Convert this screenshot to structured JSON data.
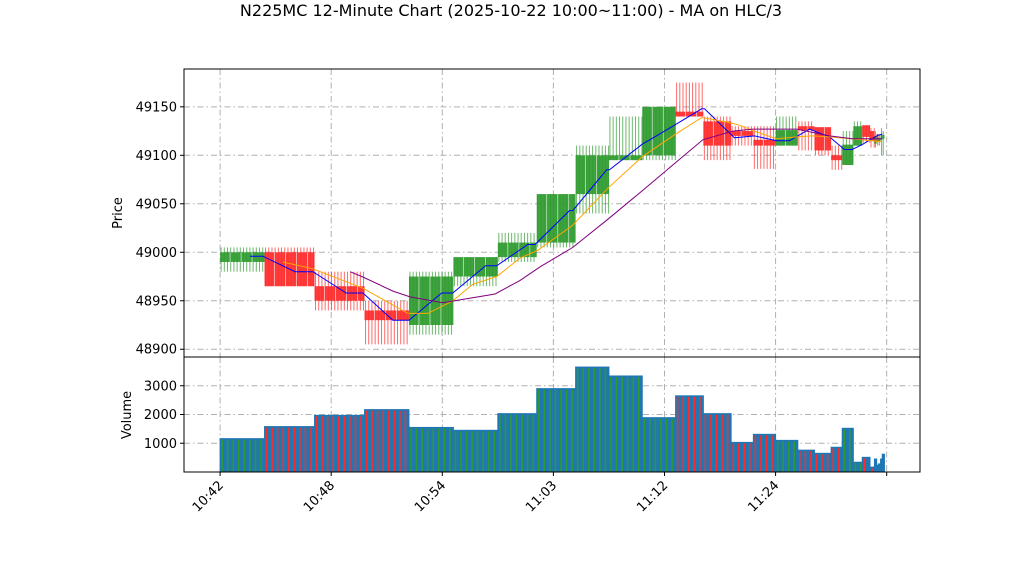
{
  "chart_data": {
    "type": "bar",
    "title": "N225MC 12-Minute Chart (2025-10-22 10:00~11:00) - MA on HLC/3",
    "xlabel": "",
    "x_ticks": [
      {
        "x": 0,
        "label": "10:42"
      },
      {
        "x": 20,
        "label": "10:48"
      },
      {
        "x": 40,
        "label": "10:54"
      },
      {
        "x": 60,
        "label": "11:03"
      },
      {
        "x": 80,
        "label": "11:12"
      },
      {
        "x": 100,
        "label": "11:24"
      },
      {
        "x": 120,
        "label": ""
      }
    ],
    "xlim": [
      -6.5,
      126
    ],
    "grid": true,
    "colors": {
      "up": "#2e9a2e",
      "down": "#ff2a2a",
      "volume_edge": "#1f77b4",
      "ma_fast": "#0000ff",
      "ma_mid": "#ffa500",
      "ma_slow": "#800080",
      "grid": "#b0b0b0"
    },
    "price_panel": {
      "ylabel": "Price",
      "ylim": [
        48892,
        49189
      ],
      "y_ticks": [
        48900,
        48950,
        49000,
        49050,
        49100,
        49150
      ],
      "y_tick_labels": [
        "48900",
        "48950",
        "49000",
        "49050",
        "49100",
        "49150"
      ]
    },
    "volume_panel": {
      "ylabel": "Volume",
      "ylim": [
        0,
        4000
      ],
      "y_ticks": [
        1000,
        2000,
        3000
      ],
      "y_tick_labels": [
        "1000",
        "2000",
        "3000"
      ]
    },
    "bars": [
      {
        "x0": 0,
        "x1": 8,
        "open": 48990,
        "high": 49005,
        "low": 48980,
        "close": 49000,
        "volume": 1160
      },
      {
        "x0": 8,
        "x1": 17,
        "open": 49000,
        "high": 49005,
        "low": 48965,
        "close": 48965,
        "volume": 1580
      },
      {
        "x0": 17,
        "x1": 26,
        "open": 48965,
        "high": 48980,
        "low": 48940,
        "close": 48950,
        "volume": 1970
      },
      {
        "x0": 26,
        "x1": 34,
        "open": 48940,
        "high": 48950,
        "low": 48905,
        "close": 48930,
        "volume": 2170
      },
      {
        "x0": 34,
        "x1": 42,
        "open": 48925,
        "high": 48980,
        "low": 48915,
        "close": 48975,
        "volume": 1550
      },
      {
        "x0": 42,
        "x1": 50,
        "open": 48975,
        "high": 48995,
        "low": 48965,
        "close": 48995,
        "volume": 1450
      },
      {
        "x0": 50,
        "x1": 57,
        "open": 48995,
        "high": 49020,
        "low": 48990,
        "close": 49010,
        "volume": 2030
      },
      {
        "x0": 57,
        "x1": 64,
        "open": 49010,
        "high": 49060,
        "low": 49005,
        "close": 49060,
        "volume": 2900
      },
      {
        "x0": 64,
        "x1": 70,
        "open": 49060,
        "high": 49110,
        "low": 49040,
        "close": 49100,
        "volume": 3650
      },
      {
        "x0": 70,
        "x1": 76,
        "open": 49095,
        "high": 49140,
        "low": 49095,
        "close": 49100,
        "volume": 3340
      },
      {
        "x0": 76,
        "x1": 82,
        "open": 49100,
        "high": 49150,
        "low": 49095,
        "close": 49150,
        "volume": 1890
      },
      {
        "x0": 82,
        "x1": 87,
        "open": 49145,
        "high": 49175,
        "low": 49140,
        "close": 49140,
        "volume": 2650
      },
      {
        "x0": 87,
        "x1": 92,
        "open": 49135,
        "high": 49140,
        "low": 49095,
        "close": 49110,
        "volume": 2030
      },
      {
        "x0": 92,
        "x1": 96,
        "open": 49125,
        "high": 49130,
        "low": 49110,
        "close": 49120,
        "volume": 1030
      },
      {
        "x0": 96,
        "x1": 100,
        "open": 49116,
        "high": 49130,
        "low": 49086,
        "close": 49110,
        "volume": 1310
      },
      {
        "x0": 100,
        "x1": 104,
        "open": 49110,
        "high": 49140,
        "low": 49110,
        "close": 49126,
        "volume": 1100
      },
      {
        "x0": 104,
        "x1": 107,
        "open": 49130,
        "high": 49135,
        "low": 49105,
        "close": 49126,
        "volume": 760
      },
      {
        "x0": 107,
        "x1": 110,
        "open": 49129,
        "high": 49129,
        "low": 49100,
        "close": 49105,
        "volume": 650
      },
      {
        "x0": 110,
        "x1": 112,
        "open": 49100,
        "high": 49110,
        "low": 49085,
        "close": 49095,
        "volume": 860
      },
      {
        "x0": 112,
        "x1": 114,
        "open": 49090,
        "high": 49125,
        "low": 49090,
        "close": 49111,
        "volume": 1520
      },
      {
        "x0": 114,
        "x1": 115.6,
        "open": 49110,
        "high": 49135,
        "low": 49110,
        "close": 49130,
        "volume": 340
      },
      {
        "x0": 115.6,
        "x1": 117,
        "open": 49131,
        "high": 49131,
        "low": 49113,
        "close": 49119,
        "volume": 510
      },
      {
        "x0": 117,
        "x1": 117.8,
        "open": 49125,
        "high": 49128,
        "low": 49108,
        "close": 49115,
        "volume": 170
      },
      {
        "x0": 117.8,
        "x1": 118.2,
        "open": 49112,
        "high": 49125,
        "low": 49108,
        "close": 49120,
        "volume": 450
      },
      {
        "x0": 118.2,
        "x1": 118.5,
        "open": 49122,
        "high": 49122,
        "low": 49110,
        "close": 49114,
        "volume": 230
      },
      {
        "x0": 118.5,
        "x1": 118.9,
        "open": 49114,
        "high": 49122,
        "low": 49110,
        "close": 49118,
        "volume": 280
      },
      {
        "x0": 118.9,
        "x1": 119.2,
        "open": 49116,
        "high": 49128,
        "low": 49100,
        "close": 49121,
        "volume": 450
      },
      {
        "x0": 119.2,
        "x1": 119.6,
        "open": 49117,
        "high": 49125,
        "low": 49100,
        "close": 49121,
        "volume": 620
      }
    ],
    "series": [
      {
        "name": "MA fast",
        "color_key": "ma_fast",
        "x": [
          5.4,
          7.7,
          13.5,
          16.7,
          22.7,
          25.7,
          31.1,
          34,
          39.9,
          41.9,
          47.8,
          49.8,
          55.4,
          56.7,
          62.9,
          63.5,
          69.6,
          70.1,
          75.9,
          81.5,
          86.7,
          87.2,
          92.6,
          96.2,
          100.2,
          102.5,
          106.1,
          109.7,
          112.4,
          113.8,
          115.6,
          118.2,
          119.2
        ],
        "values": [
          48996,
          48996,
          48980,
          48980,
          48958,
          48958,
          48930,
          48930,
          48958,
          48958,
          48986,
          48986,
          49008,
          49008,
          49043,
          49043,
          49085,
          49085,
          49111,
          49130,
          49148,
          49148,
          49118,
          49120,
          49115,
          49115,
          49127,
          49119,
          49106,
          49106,
          49111,
          49120,
          49122
        ]
      },
      {
        "name": "MA mid",
        "color_key": "ma_mid",
        "x": [
          11.3,
          16.7,
          25.7,
          33.8,
          37.4,
          41.9,
          45.5,
          49.8,
          54,
          57.2,
          63.5,
          69.8,
          75.9,
          81.5,
          86.7,
          91.4,
          93.5,
          96.6,
          100.2,
          103.8,
          106.5,
          109.7,
          115.6,
          119.2
        ],
        "values": [
          48990,
          48983,
          48963,
          48937,
          48937,
          48950,
          48967,
          48975,
          48994,
          49002,
          49028,
          49066,
          49098,
          49120,
          49139,
          49134,
          49131,
          49124,
          49117,
          49119,
          49120,
          49119,
          49116,
          49114
        ]
      },
      {
        "name": "MA slow",
        "color_key": "ma_slow",
        "x": [
          23.4,
          25.5,
          31.1,
          34.2,
          40.1,
          49.5,
          54,
          57.6,
          63.5,
          69.8,
          75.9,
          81.5,
          86.9,
          92.3,
          95.9,
          103.8,
          109.7,
          113.8,
          119.2
        ],
        "values": [
          48980,
          48975,
          48960,
          48954,
          48948,
          48957,
          48971,
          48985,
          49005,
          49034,
          49063,
          49090,
          49116,
          49125,
          49127,
          49127,
          49120,
          49117,
          49117
        ]
      }
    ]
  }
}
